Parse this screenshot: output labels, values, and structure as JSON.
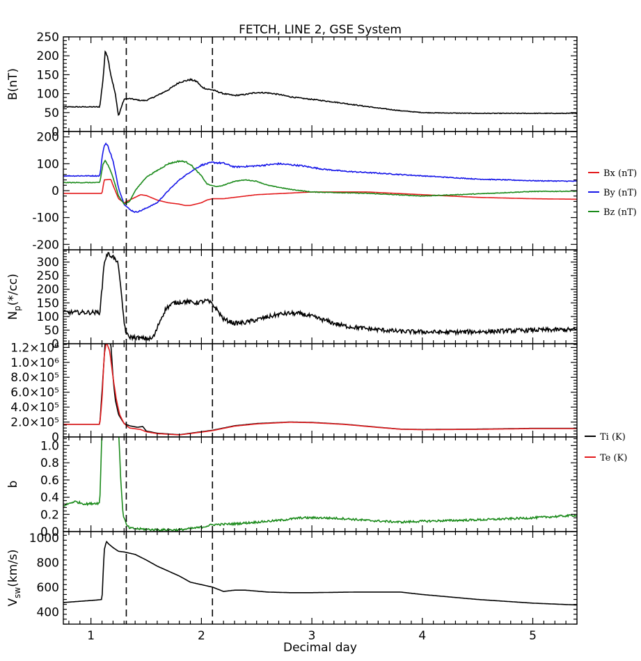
{
  "chart_data": {
    "type": "line",
    "title": "FETCH, LINE 2, GSE System",
    "xlabel": "Decimal day",
    "xlim": [
      0.75,
      5.4
    ],
    "x_ticks": [
      1,
      2,
      3,
      4,
      5
    ],
    "x_tick_labels": [
      "1",
      "2",
      "3",
      "4",
      "5"
    ],
    "vertical_markers_x": [
      1.32,
      2.1
    ],
    "panels": [
      {
        "id": "B",
        "ylabel": "B(nT)",
        "ylim": [
          0,
          250
        ],
        "y_ticks": [
          0,
          50,
          100,
          150,
          200,
          250
        ],
        "y_tick_labels": [
          "0",
          "50",
          "100",
          "150",
          "200",
          "250"
        ],
        "series": [
          {
            "color": "#000000",
            "noise": 0.8,
            "x": [
              0.75,
              1.08,
              1.11,
              1.13,
              1.15,
              1.18,
              1.22,
              1.25,
              1.27,
              1.3,
              1.35,
              1.45,
              1.5,
              1.6,
              1.7,
              1.8,
              1.9,
              1.96,
              2.0,
              2.05,
              2.1,
              2.2,
              2.3,
              2.4,
              2.5,
              2.6,
              2.7,
              2.8,
              2.9,
              3.0,
              3.2,
              3.4,
              3.6,
              3.8,
              4.0,
              4.2,
              4.5,
              5.0,
              5.4
            ],
            "y": [
              65,
              65,
              140,
              213,
              200,
              150,
              100,
              40,
              60,
              85,
              87,
              82,
              82,
              95,
              110,
              130,
              137,
              132,
              118,
              112,
              110,
              100,
              95,
              98,
              103,
              102,
              98,
              92,
              88,
              85,
              78,
              70,
              62,
              55,
              50,
              49,
              48,
              48,
              48
            ]
          }
        ]
      },
      {
        "id": "Bvec",
        "ylabel": "",
        "ylim": [
          -220,
          220
        ],
        "y_ticks": [
          -200,
          -100,
          0,
          100,
          200
        ],
        "y_tick_labels": [
          "-200",
          "-100",
          "0",
          "100",
          "200"
        ],
        "legend": {
          "position": "right",
          "entries": [
            "Bx (nT)",
            "By (nT)",
            "Bz (nT)"
          ]
        },
        "series": [
          {
            "name": "Bx (nT)",
            "color": "#e31a1c",
            "noise": 0.0,
            "x": [
              0.75,
              1.1,
              1.12,
              1.18,
              1.2,
              1.25,
              1.3,
              1.35,
              1.45,
              1.5,
              1.6,
              1.7,
              1.8,
              1.85,
              1.9,
              2.0,
              2.05,
              2.1,
              2.2,
              2.5,
              3.0,
              3.5,
              4.0,
              4.5,
              5.0,
              5.4
            ],
            "y": [
              -10,
              -10,
              40,
              42,
              20,
              -30,
              -45,
              -35,
              -15,
              -18,
              -35,
              -45,
              -50,
              -55,
              -55,
              -45,
              -35,
              -30,
              -30,
              -15,
              -5,
              -5,
              -15,
              -25,
              -30,
              -32
            ]
          },
          {
            "name": "By (nT)",
            "color": "#1515e8",
            "noise": 1.5,
            "x": [
              0.75,
              1.08,
              1.11,
              1.13,
              1.16,
              1.2,
              1.25,
              1.3,
              1.35,
              1.4,
              1.45,
              1.55,
              1.6,
              1.7,
              1.8,
              1.9,
              2.0,
              2.1,
              2.2,
              2.3,
              2.5,
              2.7,
              2.9,
              3.1,
              3.3,
              3.6,
              4.0,
              4.5,
              5.0,
              5.4
            ],
            "y": [
              55,
              55,
              150,
              178,
              160,
              110,
              10,
              -50,
              -70,
              -80,
              -75,
              -55,
              -45,
              0,
              40,
              70,
              95,
              105,
              102,
              88,
              92,
              100,
              93,
              80,
              72,
              65,
              55,
              43,
              37,
              35
            ]
          },
          {
            "name": "Bz (nT)",
            "color": "#1a8a1a",
            "noise": 1.2,
            "x": [
              0.75,
              1.08,
              1.11,
              1.13,
              1.16,
              1.2,
              1.25,
              1.3,
              1.35,
              1.4,
              1.5,
              1.6,
              1.7,
              1.8,
              1.85,
              1.9,
              2.0,
              2.05,
              2.1,
              2.15,
              2.2,
              2.3,
              2.4,
              2.5,
              2.6,
              2.8,
              3.0,
              3.5,
              4.0,
              4.5,
              5.0,
              5.4
            ],
            "y": [
              30,
              30,
              100,
              112,
              90,
              50,
              -20,
              -50,
              -40,
              0,
              50,
              75,
              100,
              110,
              108,
              98,
              55,
              25,
              18,
              15,
              20,
              35,
              40,
              35,
              20,
              5,
              -5,
              -10,
              -20,
              -12,
              -3,
              -2
            ]
          }
        ]
      },
      {
        "id": "Np",
        "ylabel": "N_p(*/cc)",
        "ylim": [
          0,
          345
        ],
        "y_ticks": [
          0,
          50,
          100,
          150,
          200,
          250,
          300
        ],
        "y_tick_labels": [
          "0",
          "50",
          "100",
          "150",
          "200",
          "250",
          "300"
        ],
        "series": [
          {
            "color": "#000000",
            "noise": 8,
            "x": [
              0.75,
              1.08,
              1.1,
              1.12,
              1.15,
              1.2,
              1.25,
              1.27,
              1.3,
              1.32,
              1.35,
              1.45,
              1.55,
              1.58,
              1.62,
              1.68,
              1.75,
              1.85,
              1.95,
              2.05,
              2.1,
              2.15,
              2.2,
              2.3,
              2.4,
              2.5,
              2.6,
              2.7,
              2.8,
              2.9,
              3.0,
              3.1,
              3.2,
              3.3,
              3.5,
              3.8,
              4.2,
              4.6,
              5.0,
              5.4
            ],
            "y": [
              115,
              115,
              200,
              300,
              330,
              320,
              290,
              200,
              80,
              35,
              25,
              20,
              18,
              35,
              80,
              130,
              150,
              155,
              150,
              158,
              145,
              120,
              90,
              75,
              78,
              88,
              98,
              108,
              112,
              110,
              100,
              88,
              75,
              65,
              55,
              45,
              42,
              45,
              50,
              52
            ]
          }
        ]
      },
      {
        "id": "T",
        "ylabel": "",
        "ylim": [
          0,
          1250000
        ],
        "y_ticks": [
          0,
          200000,
          400000,
          600000,
          800000,
          1000000,
          1200000
        ],
        "y_tick_labels": [
          "0",
          "2.0×10⁵",
          "4.0×10⁵",
          "6.0×10⁵",
          "8.0×10⁵",
          "1.0×10⁶",
          "1.2×10⁶"
        ],
        "legend": {
          "position": "right",
          "entries": [
            "Ti (K)",
            "Te (K)"
          ]
        },
        "series": [
          {
            "name": "Ti (K)",
            "color": "#000000",
            "noise": 0,
            "x": [
              0.75,
              1.08,
              1.1,
              1.13,
              1.15,
              1.18,
              1.2,
              1.22,
              1.25,
              1.3,
              1.35,
              1.42,
              1.47,
              1.5,
              1.6,
              1.8,
              2.0,
              2.1,
              2.3,
              2.5,
              2.8,
              3.0,
              3.3,
              3.6,
              3.8,
              4.0,
              4.5,
              5.0,
              5.4
            ],
            "y": [
              170000,
              170000,
              600000,
              1300000,
              1300000,
              1250000,
              800000,
              500000,
              300000,
              180000,
              150000,
              130000,
              140000,
              80000,
              50000,
              30000,
              70000,
              90000,
              150000,
              180000,
              200000,
              195000,
              170000,
              130000,
              105000,
              100000,
              105000,
              115000,
              115000
            ]
          },
          {
            "name": "Te (K)",
            "color": "#e31a1c",
            "noise": 0,
            "x": [
              0.75,
              1.08,
              1.1,
              1.12,
              1.14,
              1.17,
              1.2,
              1.23,
              1.26,
              1.3,
              1.35,
              1.45,
              1.5,
              1.6,
              1.8,
              2.0,
              2.1,
              2.3,
              2.5,
              2.8,
              3.0,
              3.3,
              3.6,
              3.8,
              4.0,
              4.5,
              5.0,
              5.4
            ],
            "y": [
              170000,
              170000,
              500000,
              1100000,
              1270000,
              1150000,
              800000,
              500000,
              300000,
              180000,
              120000,
              100000,
              70000,
              45000,
              28000,
              65000,
              85000,
              145000,
              175000,
              198000,
              192000,
              168000,
              128000,
              104000,
              98000,
              102000,
              112000,
              112000
            ]
          }
        ]
      },
      {
        "id": "b",
        "ylabel": "b",
        "ylim": [
          0,
          1.1
        ],
        "y_ticks": [
          0.0,
          0.2,
          0.4,
          0.6,
          0.8,
          1.0
        ],
        "y_tick_labels": [
          "0.0",
          "0.2",
          "0.4",
          "0.6",
          "0.8",
          "1.0"
        ],
        "series": [
          {
            "color": "#1a8a1a",
            "noise": 0.012,
            "x": [
              0.75,
              0.85,
              0.95,
              1.05,
              1.08,
              1.1,
              1.12,
              1.25,
              1.27,
              1.29,
              1.32,
              1.35,
              1.45,
              1.6,
              1.8,
              2.0,
              2.1,
              2.3,
              2.5,
              2.7,
              2.9,
              3.1,
              3.3,
              3.5,
              3.8,
              4.0,
              4.3,
              4.6,
              5.0,
              5.4
            ],
            "y": [
              0.3,
              0.35,
              0.32,
              0.33,
              0.33,
              1.2,
              1.2,
              1.2,
              0.6,
              0.2,
              0.08,
              0.04,
              0.03,
              0.02,
              0.02,
              0.05,
              0.08,
              0.09,
              0.11,
              0.13,
              0.16,
              0.16,
              0.15,
              0.13,
              0.11,
              0.12,
              0.13,
              0.14,
              0.16,
              0.19
            ]
          }
        ]
      },
      {
        "id": "Vsw",
        "ylabel": "V_sw(km/s)",
        "ylim": [
          300,
          1050
        ],
        "y_ticks": [
          400,
          600,
          800,
          1000
        ],
        "y_tick_labels": [
          "400",
          "600",
          "800",
          "1000"
        ],
        "series": [
          {
            "color": "#000000",
            "noise": 0,
            "x": [
              0.75,
              1.05,
              1.1,
              1.12,
              1.14,
              1.16,
              1.2,
              1.25,
              1.3,
              1.4,
              1.5,
              1.6,
              1.7,
              1.8,
              1.9,
              2.0,
              2.1,
              2.2,
              2.3,
              2.4,
              2.6,
              2.8,
              3.0,
              3.4,
              3.8,
              4.0,
              4.5,
              5.0,
              5.4
            ],
            "y": [
              475,
              495,
              500,
              900,
              970,
              950,
              920,
              890,
              885,
              865,
              820,
              770,
              730,
              690,
              640,
              620,
              600,
              565,
              575,
              575,
              560,
              555,
              555,
              560,
              560,
              540,
              500,
              470,
              455
            ]
          }
        ]
      }
    ]
  }
}
